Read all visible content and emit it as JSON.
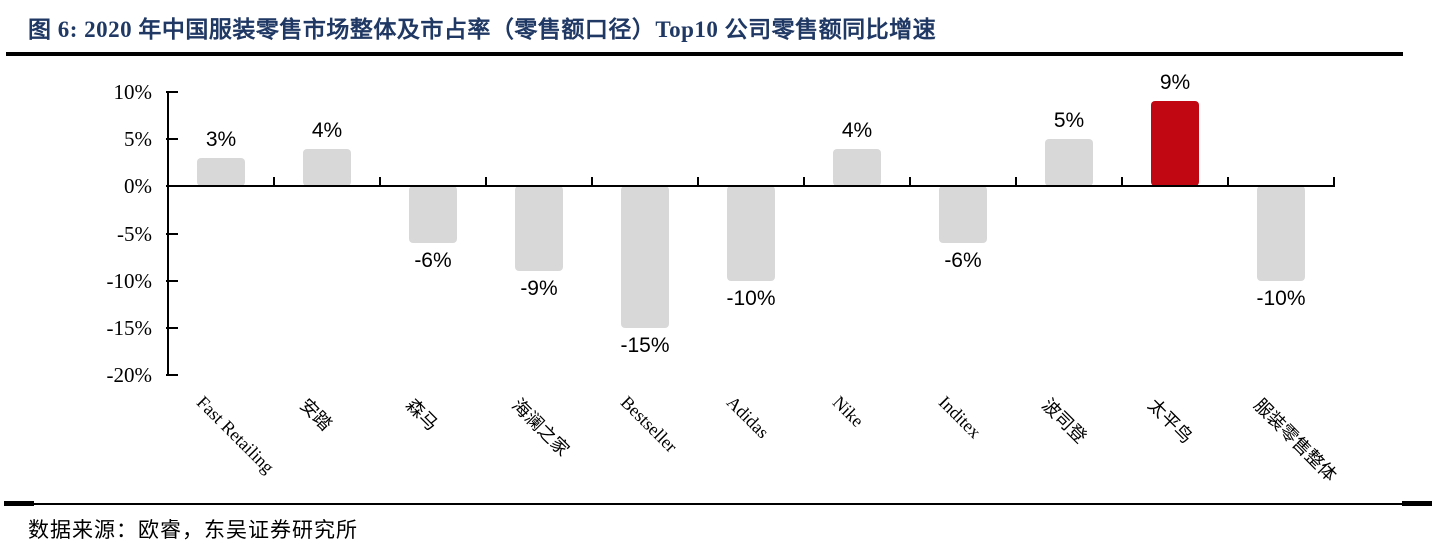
{
  "header": {
    "title": "图 6:  2020 年中国服装零售市场整体及市占率（零售额口径）Top10 公司零售额同比增速",
    "title_color": "#1f3864"
  },
  "footer": {
    "source": "数据来源：欧睿，东吴证券研究所"
  },
  "chart_data": {
    "type": "bar",
    "title": "2020年中国服装零售市场整体及市占率（零售额口径）Top10公司零售额同比增速",
    "categories": [
      "Fast Retailing",
      "安踏",
      "森马",
      "海澜之家",
      "Bestseller",
      "Adidas",
      "Nike",
      "Inditex",
      "波司登",
      "太平鸟",
      "服装零售整体"
    ],
    "values": [
      3,
      4,
      -6,
      -9,
      -15,
      -10,
      4,
      -6,
      5,
      9,
      -10
    ],
    "value_labels": [
      "3%",
      "4%",
      "-6%",
      "-9%",
      "-15%",
      "-10%",
      "4%",
      "-6%",
      "5%",
      "9%",
      "-10%"
    ],
    "highlight_index": 9,
    "bar_color": "#d8d8d8",
    "highlight_color": "#c10711",
    "y_axis": {
      "min": -20,
      "max": 10,
      "ticks": [
        10,
        5,
        0,
        -5,
        -10,
        -15,
        -20
      ],
      "tick_labels": [
        "10%",
        "5%",
        "0%",
        "-5%",
        "-10%",
        "-15%",
        "-20%"
      ]
    },
    "grid": false,
    "legend": "none",
    "bar_label_position": "outside-end",
    "category_label_rotation_deg": 45
  }
}
